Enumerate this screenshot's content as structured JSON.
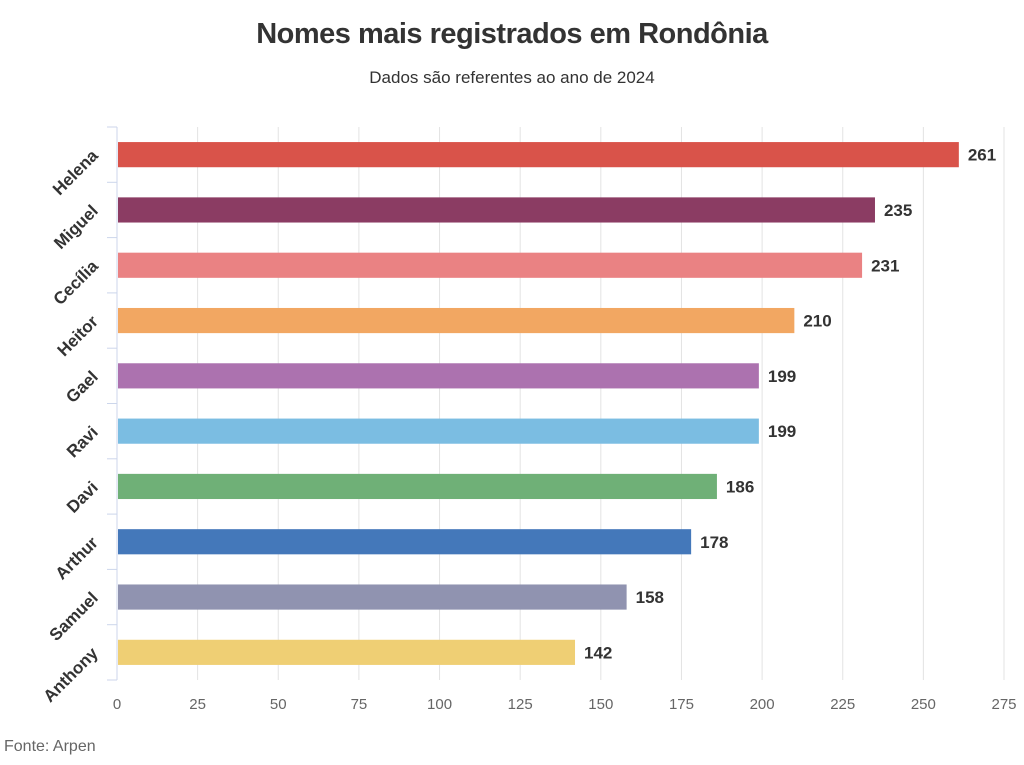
{
  "title": "Nomes mais registrados em Rondônia",
  "subtitle": "Dados são referentes ao ano de 2024",
  "source": "Fonte: Arpen",
  "chart_data": {
    "type": "bar",
    "orientation": "horizontal",
    "categories": [
      "Helena",
      "Miguel",
      "Cecília",
      "Heitor",
      "Gael",
      "Ravi",
      "Davi",
      "Arthur",
      "Samuel",
      "Anthony"
    ],
    "values": [
      261,
      235,
      231,
      210,
      199,
      199,
      186,
      178,
      158,
      142
    ],
    "colors": [
      "#d9534a",
      "#8b3c63",
      "#ea8283",
      "#f2a762",
      "#ac72af",
      "#7bbde2",
      "#6fb077",
      "#4478ba",
      "#9093b0",
      "#efcf74"
    ],
    "xlim": [
      0,
      275
    ],
    "xticks": [
      0,
      25,
      50,
      75,
      100,
      125,
      150,
      175,
      200,
      225,
      250,
      275
    ],
    "grid": true,
    "data_labels": true
  }
}
